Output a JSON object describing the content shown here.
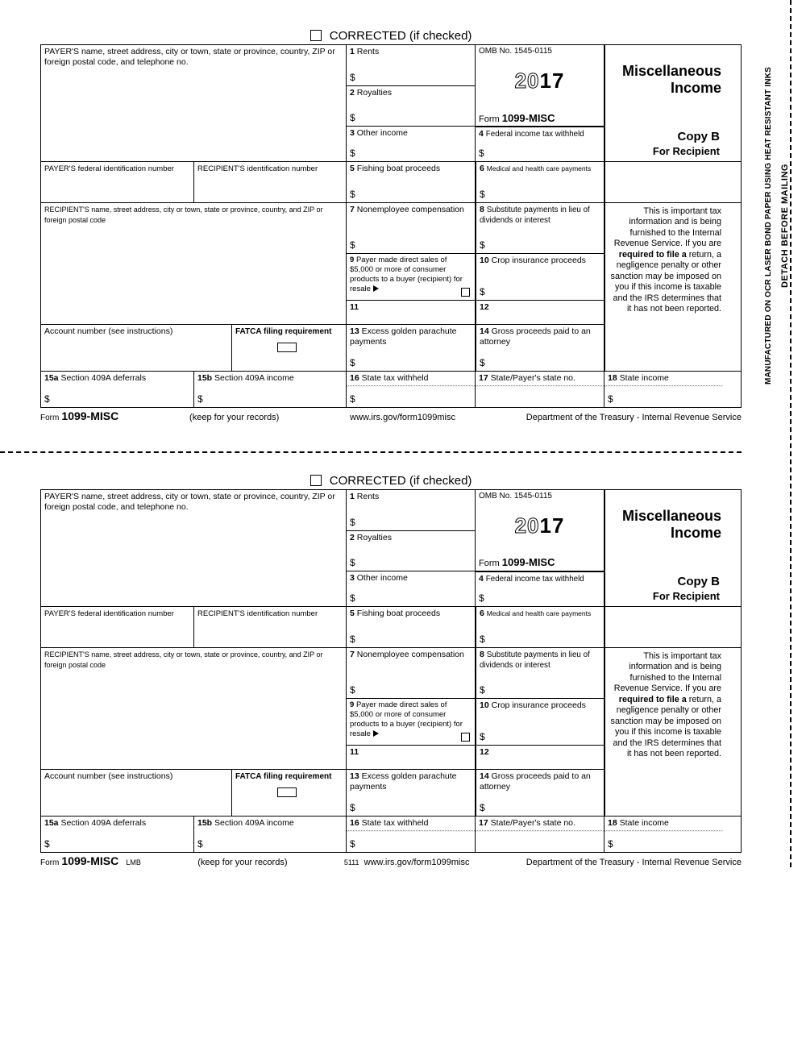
{
  "corrected": "CORRECTED (if checked)",
  "sideText1": "DETACH BEFORE MAILING",
  "sideText2": "MANUFACTURED ON OCR LASER BOND PAPER USING HEAT RESISTANT INKS",
  "payerAddr": "PAYER'S name, street address, city or town, state or province, country, ZIP or foreign postal code, and telephone no.",
  "payerFed": "PAYER'S federal identification number",
  "recipId": "RECIPIENT'S identification number",
  "recipAddr": "RECIPIENT'S name, street address, city or town, state or province, country, and ZIP or foreign postal code",
  "account": "Account number (see instructions)",
  "fatca": "FATCA filing requirement",
  "box1": "Rents",
  "box2": "Royalties",
  "box3": "Other income",
  "box4": "Federal income tax withheld",
  "box5": "Fishing boat proceeds",
  "box6": "Medical and health care payments",
  "box7": "Nonemployee compensation",
  "box8": "Substitute payments in lieu of dividends or interest",
  "box9": "Payer made direct sales of $5,000 or more of consumer products to a buyer (recipient) for resale",
  "box10": "Crop insurance proceeds",
  "box11": "",
  "box12": "",
  "box13": "Excess golden parachute payments",
  "box14": "Gross proceeds paid to an attorney",
  "box15a": "Section 409A deferrals",
  "box15b": "Section 409A income",
  "box16": "State tax withheld",
  "box17": "State/Payer's state no.",
  "box18": "State income",
  "omb": "OMB No. 1545-0115",
  "yearOutline": "20",
  "yearBold": "17",
  "formLabel": "Form",
  "formNum": "1099-MISC",
  "title1": "Miscellaneous",
  "title2": "Income",
  "copyB": "Copy B",
  "forRecip": "For Recipient",
  "notice": "This is important tax information and is being furnished to the Internal Revenue Service. If you are <b>required to file a</b> return, a negligence penalty or other sanction may be imposed on you if this income is taxable and the IRS determines that it has not been reported.",
  "keep": "(keep for your records)",
  "url": "www.irs.gov/form1099misc",
  "dept": "Department of the Treasury - Internal Revenue Service",
  "lmb": "LMB",
  "code5111": "5111"
}
